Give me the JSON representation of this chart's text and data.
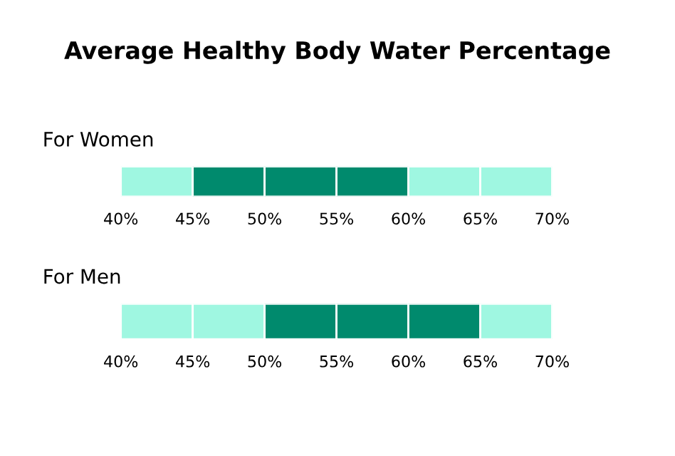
{
  "chart_data": [
    {
      "type": "bar",
      "title": "Average Healthy Body Water Percentage",
      "subtitle": "For Women",
      "orientation": "horizontal",
      "categories": [
        null
      ],
      "series": [
        {
          "color": "#9ff7e1",
          "base": [
            40
          ],
          "values": [
            5
          ]
        },
        {
          "color": "#008a6d",
          "base": [
            45
          ],
          "values": [
            5
          ]
        },
        {
          "color": "#008a6d",
          "base": [
            50
          ],
          "values": [
            5
          ]
        },
        {
          "color": "#008a6d",
          "base": [
            55
          ],
          "values": [
            5
          ]
        },
        {
          "color": "#9ff7e1",
          "base": [
            60
          ],
          "values": [
            5
          ]
        },
        {
          "color": "#9ff7e1",
          "base": [
            65
          ],
          "values": [
            5
          ]
        }
      ],
      "xlim": [
        40,
        70
      ],
      "xticks": [
        {
          "value": 40,
          "label": "40%"
        },
        {
          "value": 45,
          "label": "45%"
        },
        {
          "value": 50,
          "label": "50%"
        },
        {
          "value": 55,
          "label": "55%"
        },
        {
          "value": 60,
          "label": "60%"
        },
        {
          "value": 65,
          "label": "65%"
        },
        {
          "value": 70,
          "label": "70%"
        }
      ]
    },
    {
      "type": "bar",
      "subtitle": "For Men",
      "orientation": "horizontal",
      "categories": [
        null
      ],
      "series": [
        {
          "color": "#9ff7e1",
          "base": [
            40
          ],
          "values": [
            5
          ]
        },
        {
          "color": "#9ff7e1",
          "base": [
            45
          ],
          "values": [
            5
          ]
        },
        {
          "color": "#008a6d",
          "base": [
            50
          ],
          "values": [
            5
          ]
        },
        {
          "color": "#008a6d",
          "base": [
            55
          ],
          "values": [
            5
          ]
        },
        {
          "color": "#008a6d",
          "base": [
            60
          ],
          "values": [
            5
          ]
        },
        {
          "color": "#9ff7e1",
          "base": [
            65
          ],
          "values": [
            5
          ]
        }
      ],
      "xlim": [
        40,
        70
      ],
      "xticks": [
        {
          "value": 40,
          "label": "40%"
        },
        {
          "value": 45,
          "label": "45%"
        },
        {
          "value": 50,
          "label": "50%"
        },
        {
          "value": 55,
          "label": "55%"
        },
        {
          "value": 60,
          "label": "60%"
        },
        {
          "value": 65,
          "label": "65%"
        },
        {
          "value": 70,
          "label": "70%"
        }
      ]
    }
  ]
}
